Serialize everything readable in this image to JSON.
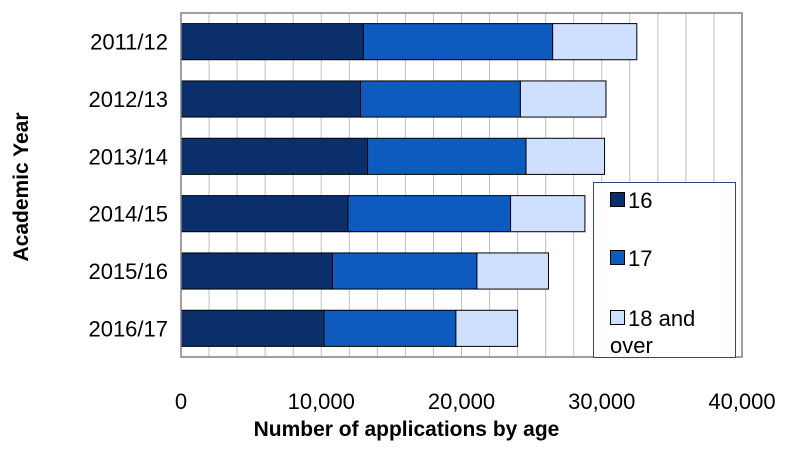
{
  "chart_data": {
    "type": "bar",
    "orientation": "horizontal",
    "stacked": true,
    "categories": [
      "2011/12",
      "2012/13",
      "2013/14",
      "2014/15",
      "2015/16",
      "2016/17"
    ],
    "series": [
      {
        "name": "16",
        "color": "#0a2f6b",
        "values": [
          13000,
          12800,
          13300,
          11900,
          10800,
          10200
        ]
      },
      {
        "name": "17",
        "color": "#0d5bbf",
        "values": [
          13500,
          11400,
          11300,
          11600,
          10300,
          9400
        ]
      },
      {
        "name": "18 and over",
        "color": "#cfe0ff",
        "values": [
          6000,
          6100,
          5600,
          5300,
          5100,
          4400
        ]
      }
    ],
    "xlabel": "Number of applications by age",
    "ylabel": "Academic Year",
    "xlim": [
      0,
      40000
    ],
    "x_ticks": [
      "0",
      "10,000",
      "20,000",
      "30,000",
      "40,000"
    ],
    "x_tick_values": [
      0,
      10000,
      20000,
      30000,
      40000
    ],
    "grid": "vertical",
    "legend_position": "right"
  }
}
